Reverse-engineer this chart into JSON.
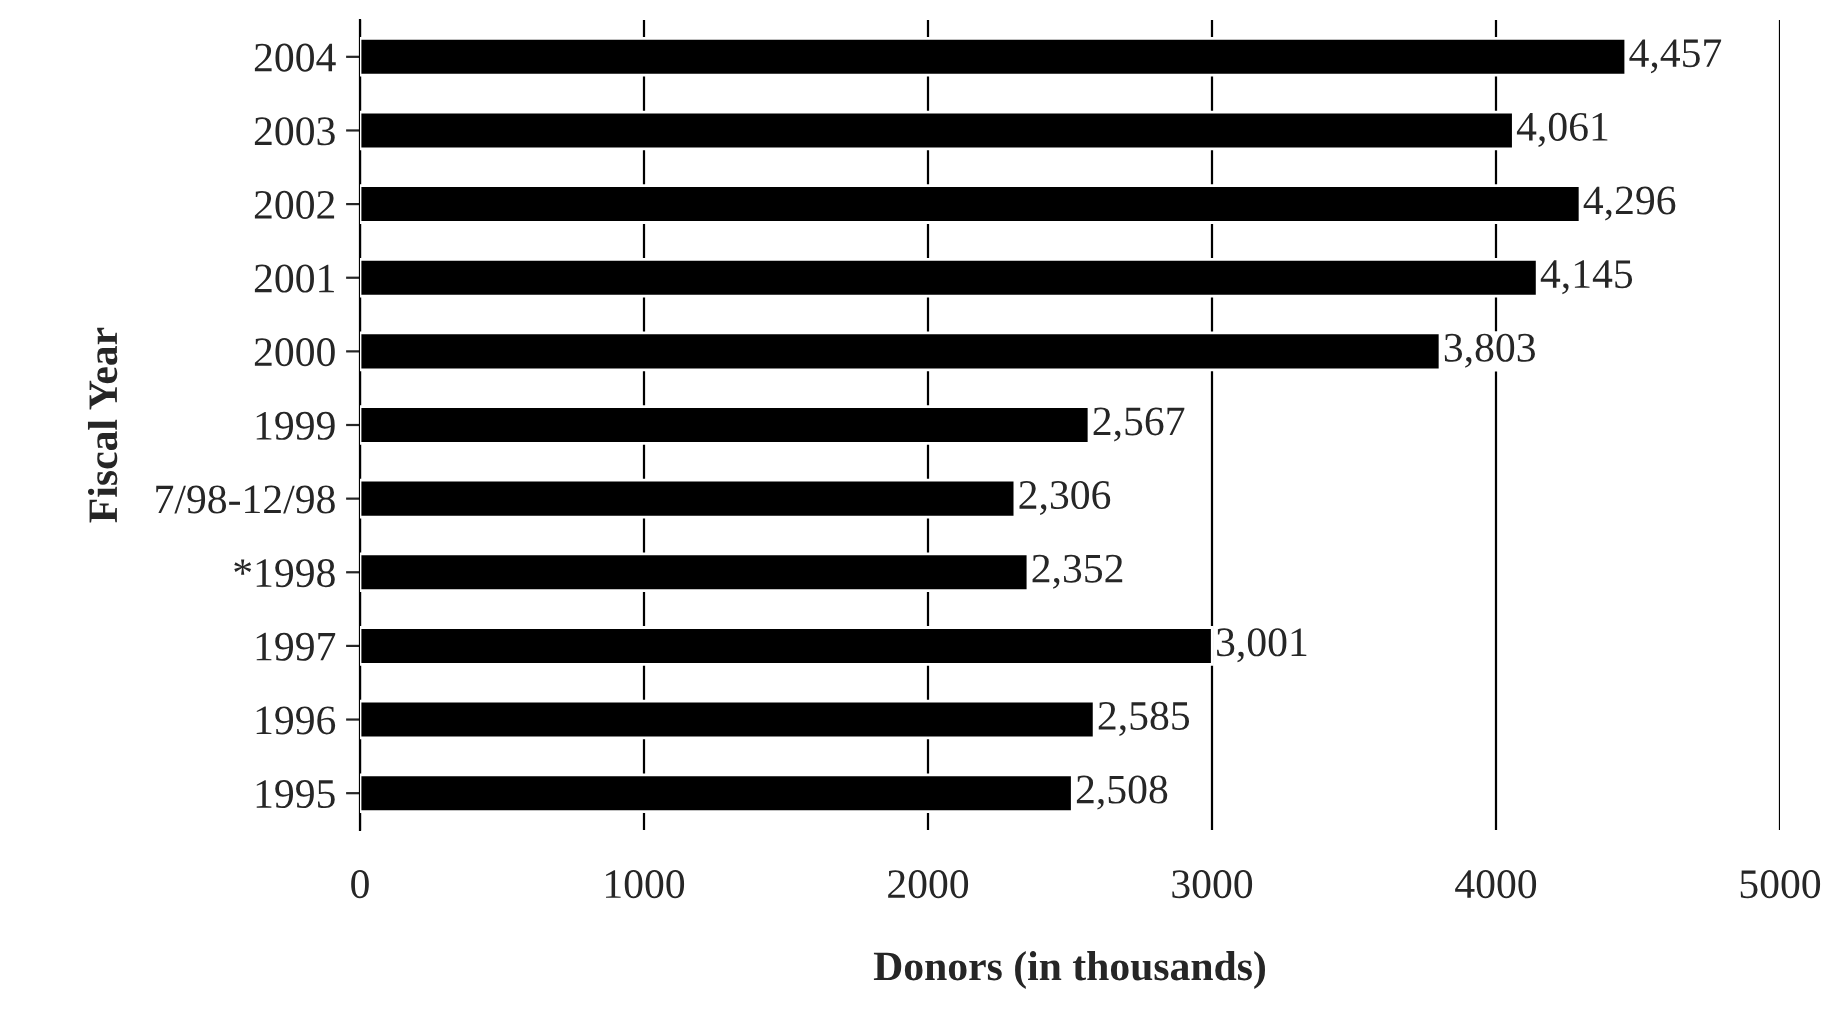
{
  "chart_data": {
    "type": "bar",
    "orientation": "horizontal",
    "xlabel": "Donors (in thousands)",
    "ylabel": "Fiscal Year",
    "categories": [
      "2004",
      "2003",
      "2002",
      "2001",
      "2000",
      "1999",
      "7/98-12/98",
      "*1998",
      "1997",
      "1996",
      "1995"
    ],
    "values": [
      4457,
      4061,
      4296,
      4145,
      3803,
      2567,
      2306,
      2352,
      3001,
      2585,
      2508
    ],
    "value_labels": [
      "4,457",
      "4,061",
      "4,296",
      "4,145",
      "3,803",
      "2,567",
      "2,306",
      "2,352",
      "3,001",
      "2,585",
      "2,508"
    ],
    "color": "#000000",
    "xlim": [
      0,
      5000
    ],
    "xticks": [
      0,
      1000,
      2000,
      3000,
      4000,
      5000
    ],
    "grid": "x"
  }
}
